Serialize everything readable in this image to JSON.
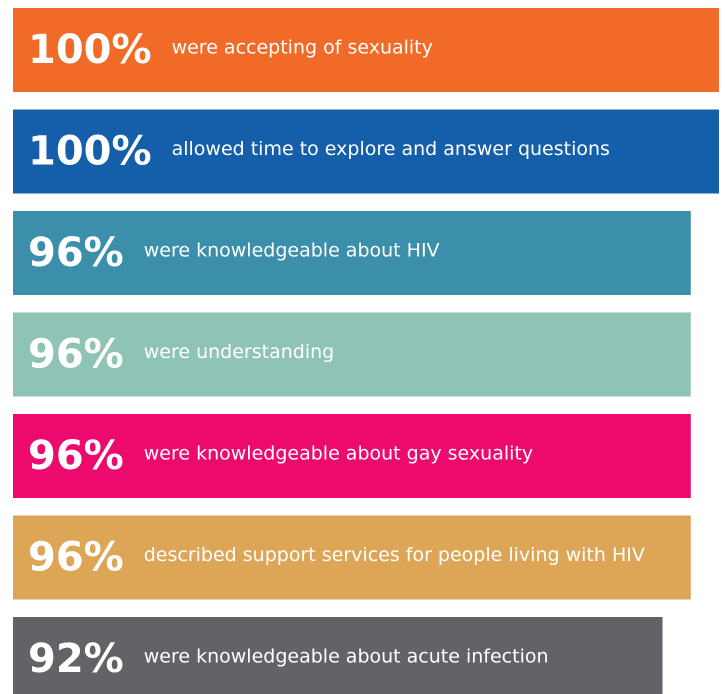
{
  "chart_data": {
    "type": "bar",
    "orientation": "horizontal",
    "categories": [
      "were accepting of sexuality",
      "allowed time to explore and answer questions",
      "were knowledgeable about HIV",
      "were understanding",
      "were knowledgeable about gay sexuality",
      "described support services for people living with HIV",
      "were knowledgeable about acute infection"
    ],
    "values": [
      100,
      100,
      96,
      96,
      96,
      96,
      92
    ],
    "value_labels": [
      "100%",
      "100%",
      "96%",
      "96%",
      "96%",
      "96%",
      "92%"
    ],
    "colors": [
      "#f26a27",
      "#155ea9",
      "#3b8fab",
      "#8ec3b6",
      "#ec0a6f",
      "#dda556",
      "#626366"
    ],
    "xlim": [
      0,
      100
    ]
  }
}
